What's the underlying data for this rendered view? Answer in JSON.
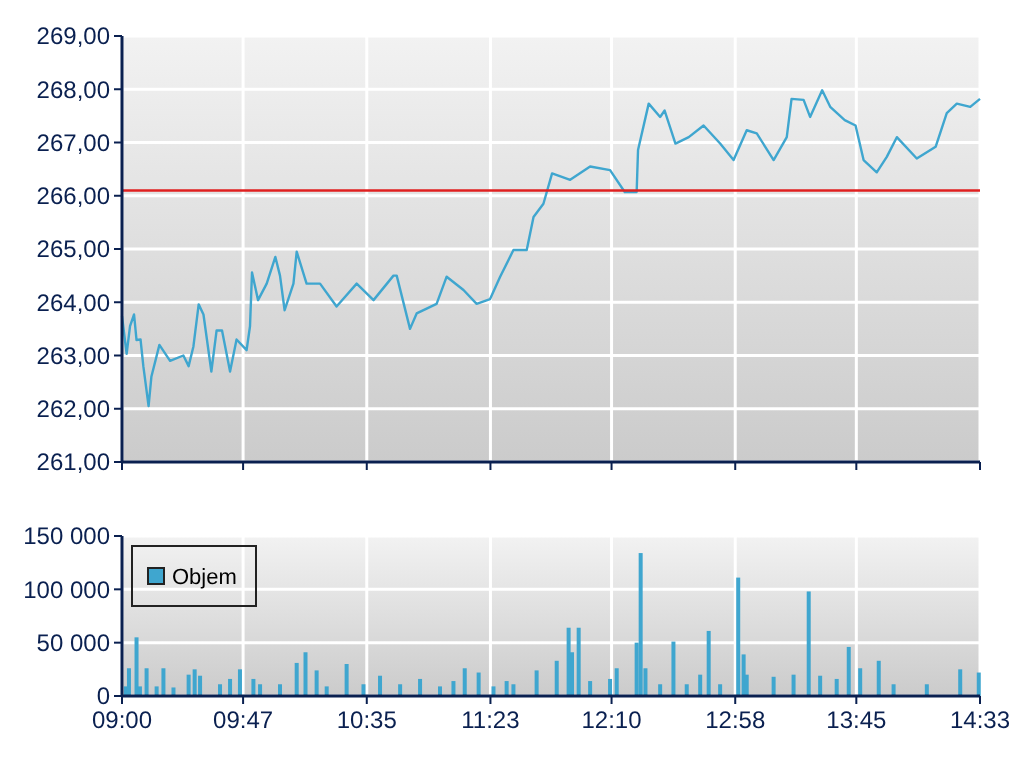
{
  "chart_data": [
    {
      "type": "line",
      "color": "#3fa6cf",
      "xlim": [
        9,
        14.55
      ],
      "xticks": [
        {
          "value": 9,
          "label": null
        },
        {
          "value": 9.7833,
          "label": null
        },
        {
          "value": 10.5833,
          "label": null
        },
        {
          "value": 11.3833,
          "label": null
        },
        {
          "value": 12.1667,
          "label": null
        },
        {
          "value": 12.9667,
          "label": null
        },
        {
          "value": 13.75,
          "label": null
        },
        {
          "value": 14.55,
          "label": null
        }
      ],
      "ylim": [
        261,
        269
      ],
      "yticks": [
        {
          "value": 261,
          "label": "261,00"
        },
        {
          "value": 262,
          "label": "262,00"
        },
        {
          "value": 263,
          "label": "263,00"
        },
        {
          "value": 264,
          "label": "264,00"
        },
        {
          "value": 265,
          "label": "265,00"
        },
        {
          "value": 266,
          "label": "266,00"
        },
        {
          "value": 267,
          "label": "267,00"
        },
        {
          "value": 268,
          "label": "268,00"
        },
        {
          "value": 269,
          "label": "269,00"
        }
      ],
      "grid": true,
      "tick_labels": "y",
      "ref_lines": [
        {
          "axis": "y",
          "value": 266.1,
          "color": "#e02020"
        }
      ],
      "x": [
        9.0,
        9.03,
        9.052,
        9.078,
        9.094,
        9.12,
        9.138,
        9.172,
        9.19,
        9.242,
        9.311,
        9.397,
        9.431,
        9.462,
        9.496,
        9.527,
        9.578,
        9.612,
        9.647,
        9.699,
        9.741,
        9.806,
        9.828,
        9.841,
        9.88,
        9.936,
        9.992,
        10.022,
        10.052,
        10.109,
        10.13,
        10.194,
        10.281,
        10.388,
        10.518,
        10.627,
        10.756,
        10.777,
        10.863,
        10.906,
        11.035,
        11.1,
        11.209,
        11.294,
        11.381,
        11.446,
        11.532,
        11.618,
        11.662,
        11.726,
        11.782,
        11.899,
        12.028,
        12.157,
        12.252,
        12.329,
        12.338,
        12.407,
        12.481,
        12.51,
        12.58,
        12.666,
        12.762,
        12.869,
        12.956,
        13.041,
        13.106,
        13.215,
        13.3,
        13.331,
        13.409,
        13.451,
        13.529,
        13.581,
        13.675,
        13.745,
        13.797,
        13.882,
        13.947,
        14.012,
        14.141,
        14.263,
        14.335,
        14.4,
        14.487,
        14.55
      ],
      "values": [
        263.74,
        263.03,
        263.55,
        263.77,
        263.29,
        263.3,
        262.8,
        262.05,
        262.6,
        263.2,
        262.9,
        263.0,
        262.8,
        263.17,
        263.96,
        263.77,
        262.7,
        263.47,
        263.47,
        262.7,
        263.3,
        263.1,
        263.55,
        264.56,
        264.04,
        264.35,
        264.85,
        264.5,
        263.85,
        264.35,
        264.95,
        264.35,
        264.35,
        263.92,
        264.35,
        264.04,
        264.5,
        264.5,
        263.5,
        263.79,
        263.97,
        264.48,
        264.23,
        263.97,
        264.06,
        264.48,
        264.98,
        264.98,
        265.6,
        265.85,
        266.42,
        266.3,
        266.55,
        266.48,
        266.07,
        266.07,
        266.86,
        267.73,
        267.48,
        267.6,
        266.98,
        267.1,
        267.32,
        266.98,
        266.67,
        267.23,
        267.17,
        266.67,
        267.1,
        267.82,
        267.8,
        267.48,
        267.98,
        267.67,
        267.42,
        267.32,
        266.67,
        266.44,
        266.73,
        267.1,
        266.7,
        266.92,
        267.55,
        267.73,
        267.67,
        267.82
      ]
    },
    {
      "type": "bar",
      "xlim": [
        9,
        14.55
      ],
      "xticks": [
        {
          "value": 9,
          "label": "09:00"
        },
        {
          "value": 9.7833,
          "label": "09:47"
        },
        {
          "value": 10.5833,
          "label": "10:35"
        },
        {
          "value": 11.3833,
          "label": "11:23"
        },
        {
          "value": 12.1667,
          "label": "12:10"
        },
        {
          "value": 12.9667,
          "label": "12:58"
        },
        {
          "value": 13.75,
          "label": "13:45"
        },
        {
          "value": 14.55,
          "label": "14:33"
        }
      ],
      "ylim": [
        0,
        150000
      ],
      "yticks": [
        {
          "value": 0,
          "label": "0"
        },
        {
          "value": 50000,
          "label": "50 000"
        },
        {
          "value": 100000,
          "label": "100 000"
        },
        {
          "value": 150000,
          "label": "150 000"
        }
      ],
      "grid": true,
      "legend": "top left",
      "x": [
        9.025,
        9.045,
        9.094,
        9.116,
        9.159,
        9.224,
        9.268,
        9.333,
        9.431,
        9.47,
        9.505,
        9.634,
        9.699,
        9.763,
        9.85,
        9.893,
        10.022,
        10.13,
        10.187,
        10.259,
        10.324,
        10.453,
        10.562,
        10.669,
        10.799,
        10.928,
        11.057,
        11.144,
        11.217,
        11.307,
        11.403,
        11.488,
        11.532,
        11.682,
        11.812,
        11.889,
        11.911,
        11.954,
        12.028,
        12.157,
        12.2,
        12.329,
        12.355,
        12.386,
        12.481,
        12.567,
        12.653,
        12.74,
        12.795,
        12.869,
        12.986,
        13.021,
        13.041,
        13.215,
        13.344,
        13.442,
        13.516,
        13.623,
        13.701,
        13.775,
        13.895,
        13.991,
        14.206,
        14.422,
        14.542
      ],
      "series": [
        {
          "name": "Objem",
          "color": "#3fa6cf",
          "values": [
            9000,
            26000,
            55000,
            9000,
            26000,
            9000,
            26000,
            8000,
            20000,
            25000,
            19000,
            11000,
            16000,
            25000,
            16000,
            11000,
            11000,
            31000,
            41000,
            24000,
            9000,
            30000,
            11000,
            19000,
            11000,
            16000,
            9000,
            14000,
            26000,
            22000,
            9000,
            14000,
            11000,
            24000,
            33000,
            64000,
            41000,
            64000,
            14000,
            16000,
            26000,
            50000,
            134000,
            26000,
            11000,
            51000,
            11000,
            20000,
            61000,
            11000,
            111000,
            39000,
            20000,
            18000,
            20000,
            98000,
            19000,
            16000,
            46000,
            26000,
            33000,
            11000,
            11000,
            25000,
            22000
          ]
        }
      ]
    }
  ]
}
